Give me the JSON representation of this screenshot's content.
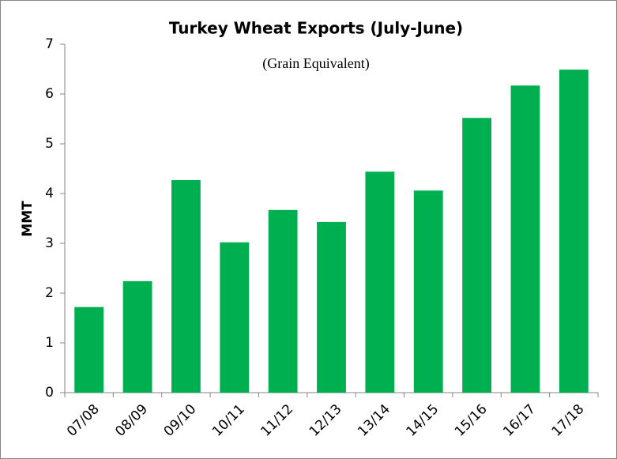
{
  "chart_data": {
    "type": "bar",
    "title": "Turkey Wheat Exports (July-June)",
    "subtitle": "(Grain Equivalent)",
    "y_label": "MMT",
    "categories": [
      "07/08",
      "08/09",
      "09/10",
      "10/11",
      "11/12",
      "12/13",
      "13/14",
      "14/15",
      "15/16",
      "16/17",
      "17/18"
    ],
    "values": [
      1.72,
      2.24,
      4.27,
      3.02,
      3.67,
      3.43,
      4.44,
      4.06,
      5.52,
      6.17,
      6.49
    ],
    "color": "#00b050",
    "ylim": [
      0,
      7
    ],
    "yticks": [
      0,
      1,
      2,
      3,
      4,
      5,
      6,
      7
    ],
    "grid": false
  }
}
